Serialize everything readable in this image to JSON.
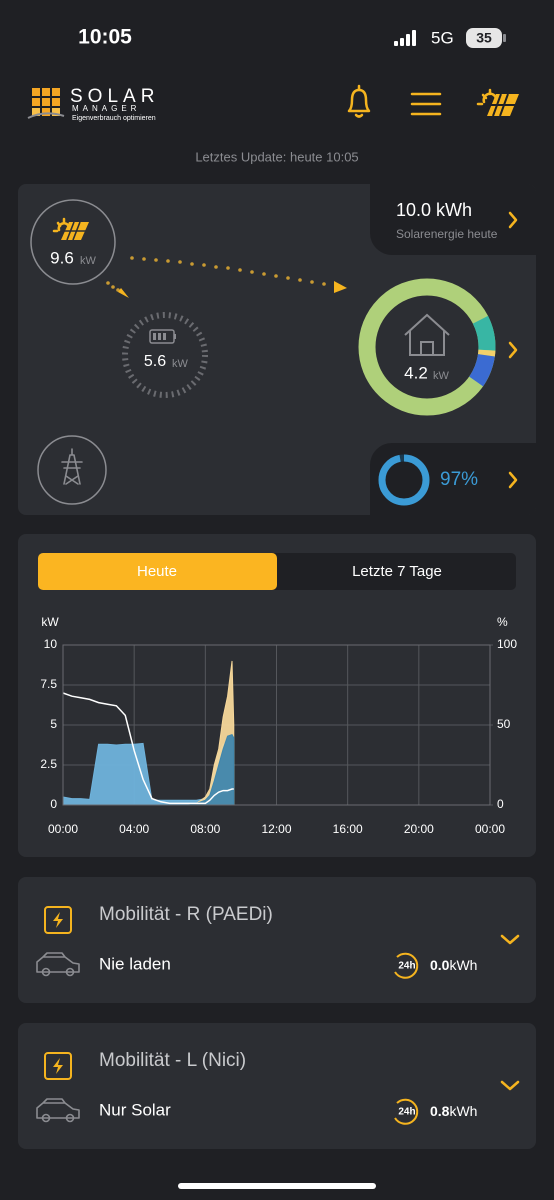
{
  "status_bar": {
    "time": "10:05",
    "network": "5G",
    "battery": "35"
  },
  "header": {
    "logo_title": "SOLAR",
    "logo_subtitle": "MANAGER",
    "logo_tagline": "Eigenverbrauch optimieren"
  },
  "last_update": "Letztes Update: heute 10:05",
  "overview": {
    "pv_power": "9.6",
    "pv_unit": "kW",
    "battery_power": "5.6",
    "battery_unit": "kW",
    "home_power": "4.2",
    "home_unit": "kW",
    "solar_energy": "10.0 kWh",
    "solar_energy_label": "Solarenergie heute",
    "self_sufficiency": {
      "value": 97,
      "label": "97%"
    }
  },
  "tabs": [
    "Heute",
    "Letzte 7 Tage"
  ],
  "chart_data": {
    "type": "area",
    "y_label": "kW",
    "y2_label": "%",
    "x": [
      0,
      0.5,
      1,
      1.5,
      2,
      2.5,
      3,
      3.5,
      4,
      4.5,
      5,
      5.5,
      6,
      6.5,
      7,
      7.5,
      8,
      8.25,
      8.5,
      8.75,
      9,
      9.25,
      9.5,
      9.6
    ],
    "xlim": [
      0,
      24
    ],
    "xticks": [
      {
        "value": 0,
        "label": "00:00"
      },
      {
        "value": 4,
        "label": "04:00"
      },
      {
        "value": 8,
        "label": "08:00"
      },
      {
        "value": 12,
        "label": "12:00"
      },
      {
        "value": 16,
        "label": "16:00"
      },
      {
        "value": 20,
        "label": "20:00"
      },
      {
        "value": 24,
        "label": "00:00"
      }
    ],
    "ylim": [
      0,
      10
    ],
    "yticks": [
      0,
      2.5,
      5,
      7.5,
      10
    ],
    "y2lim": [
      0,
      100
    ],
    "y2ticks": [
      0,
      50,
      100
    ],
    "grid": true,
    "series": [
      {
        "type": "area",
        "color": "#6fb3dc",
        "values": [
          0.5,
          0.4,
          0.4,
          0.35,
          3.8,
          3.8,
          3.75,
          3.8,
          3.8,
          3.85,
          0.3,
          0.3,
          0.3,
          0.3,
          0.3,
          0.3,
          0.4,
          0.8,
          2.3,
          3.2,
          3.8,
          3.9,
          4.0,
          4.1
        ]
      },
      {
        "type": "area",
        "color": "#f6d79a",
        "values": [
          0,
          0,
          0,
          0,
          0,
          0,
          0,
          0,
          0,
          0,
          0,
          0,
          0,
          0,
          0,
          0.1,
          0.5,
          1.0,
          2.5,
          3.5,
          5.5,
          6.8,
          9.0,
          5.0
        ]
      },
      {
        "type": "area",
        "color": "#3f86ad",
        "values": [
          0,
          0,
          0,
          0,
          0,
          0,
          0,
          0,
          0,
          0,
          0,
          0,
          0,
          0,
          0,
          0.1,
          0.3,
          0.6,
          1.5,
          2.5,
          3.5,
          4.3,
          4.4,
          4.2
        ]
      },
      {
        "type": "line",
        "axis": "y2",
        "color": "#ffffff",
        "values": [
          70,
          68,
          67,
          66,
          64,
          63,
          62,
          56,
          34,
          16,
          4,
          2,
          1,
          1,
          1,
          1,
          1,
          3,
          6,
          8,
          9,
          9,
          10,
          10
        ]
      }
    ]
  },
  "devices": [
    {
      "name": "Mobilität - R (PAEDi)",
      "mode": "Nie laden",
      "badge": "24h",
      "energy": "0.0",
      "unit": "kWh"
    },
    {
      "name": "Mobilität - L (Nici)",
      "mode": "Nur Solar",
      "badge": "24h",
      "energy": "0.8",
      "unit": "kWh"
    }
  ]
}
